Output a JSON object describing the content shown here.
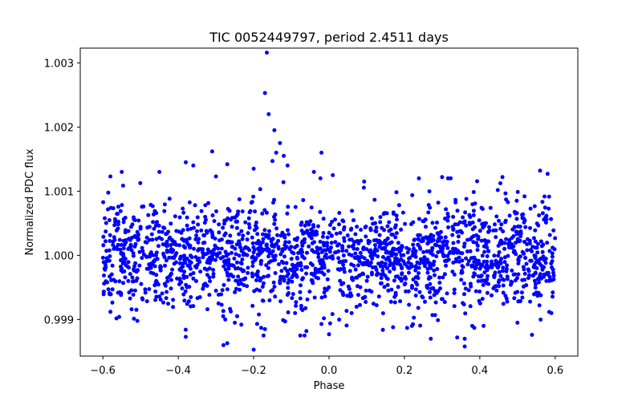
{
  "chart_data": {
    "type": "scatter",
    "title": "TIC 0052449797, period 2.4511 days",
    "xlabel": "Phase",
    "ylabel": "Normalized PDC flux",
    "xlim": [
      -0.66,
      0.66
    ],
    "ylim": [
      0.99843,
      1.00323
    ],
    "xticks": [
      -0.6,
      -0.4,
      -0.2,
      0.0,
      0.2,
      0.4,
      0.6
    ],
    "xtick_labels": [
      "−0.6",
      "−0.4",
      "−0.2",
      "0.0",
      "0.2",
      "0.4",
      "0.6"
    ],
    "yticks": [
      0.999,
      1.0,
      1.001,
      1.002,
      1.003
    ],
    "ytick_labels": [
      "0.999",
      "1.000",
      "1.001",
      "1.002",
      "1.003"
    ],
    "grid": false,
    "marker_color": "#0000ff",
    "series": [
      {
        "name": "flux",
        "points_note": "dense band of ~2000 points, phase -0.6 to 0.6, centered at 1.000 with scatter about 0.0004",
        "phase_range": [
          -0.6,
          0.6
        ],
        "center": 1.0,
        "spread": 0.0004,
        "n_points": 1900,
        "outliers": [
          [
            -0.165,
            1.00316
          ],
          [
            -0.17,
            1.00253
          ],
          [
            -0.16,
            1.0022
          ],
          [
            -0.145,
            1.00195
          ],
          [
            -0.13,
            1.00175
          ],
          [
            -0.14,
            1.0016
          ],
          [
            -0.31,
            1.00162
          ],
          [
            -0.15,
            1.00147
          ],
          [
            -0.12,
            1.00155
          ],
          [
            -0.02,
            1.0016
          ],
          [
            -0.38,
            1.00145
          ],
          [
            -0.36,
            1.0014
          ],
          [
            -0.27,
            1.00142
          ],
          [
            -0.11,
            1.0014
          ],
          [
            -0.55,
            1.0013
          ],
          [
            -0.45,
            1.0013
          ],
          [
            0.01,
            1.00125
          ],
          [
            -0.3,
            1.00123
          ],
          [
            0.56,
            1.00132
          ],
          [
            0.58,
            1.00127
          ],
          [
            0.3,
            1.00122
          ],
          [
            0.46,
            1.00122
          ],
          [
            -0.58,
            1.00123
          ],
          [
            -0.2,
            1.00135
          ],
          [
            -0.04,
            1.0013
          ],
          [
            -0.2,
            0.99853
          ],
          [
            -0.28,
            0.9986
          ],
          [
            -0.27,
            0.99863
          ],
          [
            0.36,
            0.99858
          ],
          [
            0.36,
            0.9987
          ],
          [
            -0.17,
            0.99885
          ],
          [
            -0.18,
            0.99887
          ],
          [
            0.27,
            0.9987
          ],
          [
            0.34,
            0.99872
          ],
          [
            -0.38,
            0.99873
          ],
          [
            -0.06,
            0.99882
          ],
          [
            0.0,
            0.99877
          ],
          [
            -0.02,
            0.99893
          ],
          [
            0.38,
            0.9989
          ],
          [
            0.22,
            0.9989
          ],
          [
            -0.58,
            0.99912
          ],
          [
            0.41,
            0.9989
          ],
          [
            0.5,
            0.99895
          ],
          [
            0.59,
            0.9991
          ],
          [
            -0.25,
            0.99895
          ],
          [
            0.17,
            0.99888
          ],
          [
            -0.09,
            0.9991
          ],
          [
            0.06,
            0.9991
          ]
        ]
      }
    ]
  }
}
